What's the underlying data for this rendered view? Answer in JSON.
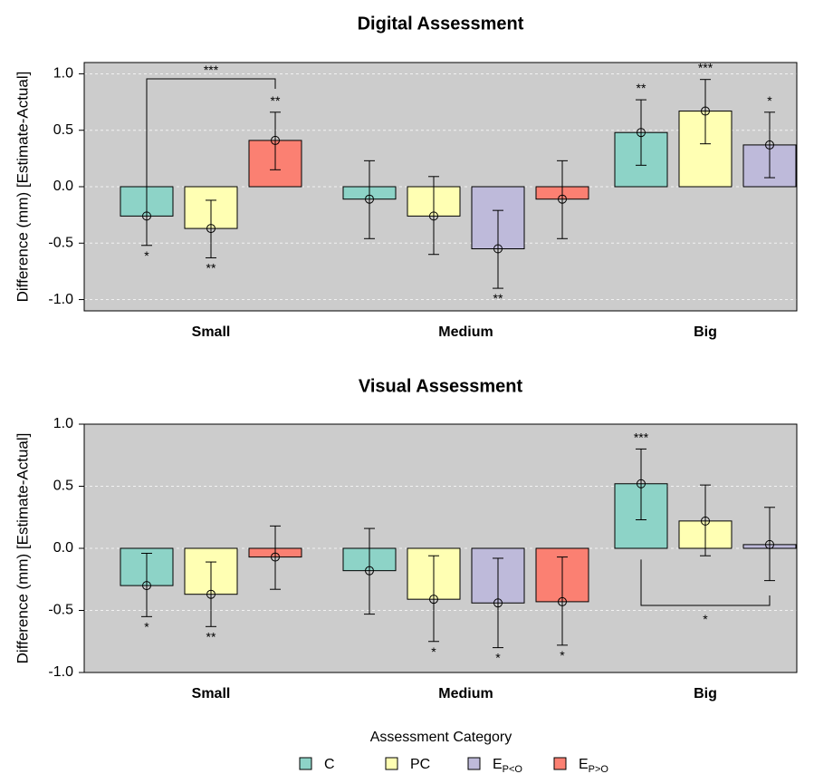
{
  "chart_data": [
    {
      "type": "bar",
      "title": "Digital Assessment",
      "ylabel": "Difference (mm) [Estimate-Actual]",
      "xlabel": "",
      "ylim": [
        -1.1,
        1.1
      ],
      "yticks": [
        "1.0",
        "0.5",
        "0.0",
        "-0.5",
        "-1.0"
      ],
      "grid": true,
      "categories": [
        "Small",
        "Medium",
        "Big"
      ],
      "groups": [
        {
          "category": "Small",
          "bars": [
            {
              "series": "C",
              "value": -0.26,
              "ci_low": -0.52,
              "ci_high": 0.0,
              "sig": "*"
            },
            {
              "series": "PC",
              "value": -0.37,
              "ci_low": -0.63,
              "ci_high": -0.12,
              "sig": "**"
            },
            {
              "series": "E>",
              "value": 0.41,
              "ci_low": 0.15,
              "ci_high": 0.66,
              "sig": "**"
            }
          ]
        },
        {
          "category": "Medium",
          "bars": [
            {
              "series": "C",
              "value": -0.11,
              "ci_low": -0.46,
              "ci_high": 0.23,
              "sig": ""
            },
            {
              "series": "PC",
              "value": -0.26,
              "ci_low": -0.6,
              "ci_high": 0.09,
              "sig": ""
            },
            {
              "series": "E<",
              "value": -0.55,
              "ci_low": -0.9,
              "ci_high": -0.21,
              "sig": "**"
            },
            {
              "series": "E>",
              "value": -0.11,
              "ci_low": -0.46,
              "ci_high": 0.23,
              "sig": ""
            }
          ]
        },
        {
          "category": "Big",
          "bars": [
            {
              "series": "C",
              "value": 0.48,
              "ci_low": 0.19,
              "ci_high": 0.77,
              "sig": "**"
            },
            {
              "series": "PC",
              "value": 0.67,
              "ci_low": 0.38,
              "ci_high": 0.95,
              "sig": "***"
            },
            {
              "series": "E<",
              "value": 0.37,
              "ci_low": 0.08,
              "ci_high": 0.66,
              "sig": "*"
            }
          ]
        }
      ],
      "brackets": [
        {
          "from": "Small/C",
          "to": "Small/E>",
          "label": "***",
          "position": "above"
        }
      ]
    },
    {
      "type": "bar",
      "title": "Visual Assessment",
      "ylabel": "Difference (mm) [Estimate-Actual]",
      "xlabel": "",
      "ylim": [
        -1.0,
        1.0
      ],
      "yticks": [
        "1.0",
        "0.5",
        "0.0",
        "-0.5",
        "-1.0"
      ],
      "grid": true,
      "categories": [
        "Small",
        "Medium",
        "Big"
      ],
      "groups": [
        {
          "category": "Small",
          "bars": [
            {
              "series": "C",
              "value": -0.3,
              "ci_low": -0.55,
              "ci_high": -0.04,
              "sig": "*"
            },
            {
              "series": "PC",
              "value": -0.37,
              "ci_low": -0.63,
              "ci_high": -0.11,
              "sig": "**"
            },
            {
              "series": "E>",
              "value": -0.07,
              "ci_low": -0.33,
              "ci_high": 0.18,
              "sig": ""
            }
          ]
        },
        {
          "category": "Medium",
          "bars": [
            {
              "series": "C",
              "value": -0.18,
              "ci_low": -0.53,
              "ci_high": 0.16,
              "sig": ""
            },
            {
              "series": "PC",
              "value": -0.41,
              "ci_low": -0.75,
              "ci_high": -0.06,
              "sig": "*"
            },
            {
              "series": "E<",
              "value": -0.44,
              "ci_low": -0.8,
              "ci_high": -0.08,
              "sig": "*"
            },
            {
              "series": "E>",
              "value": -0.43,
              "ci_low": -0.78,
              "ci_high": -0.07,
              "sig": "*"
            }
          ]
        },
        {
          "category": "Big",
          "bars": [
            {
              "series": "C",
              "value": 0.52,
              "ci_low": 0.23,
              "ci_high": 0.8,
              "sig": "***"
            },
            {
              "series": "PC",
              "value": 0.22,
              "ci_low": -0.06,
              "ci_high": 0.51,
              "sig": ""
            },
            {
              "series": "E<",
              "value": 0.03,
              "ci_low": -0.26,
              "ci_high": 0.33,
              "sig": ""
            }
          ]
        }
      ],
      "brackets": [
        {
          "from": "Big/C",
          "to": "Big/E<",
          "label": "*",
          "position": "below"
        }
      ]
    }
  ],
  "legend": {
    "title": "Assessment Category",
    "placement": "bottom-center",
    "items": [
      {
        "key": "C",
        "label": "C",
        "sub": "",
        "color": "#8dd3c7"
      },
      {
        "key": "PC",
        "label": "PC",
        "sub": "",
        "color": "#ffffb3"
      },
      {
        "key": "E<",
        "label": "E",
        "sub": "P<O",
        "color": "#bebada"
      },
      {
        "key": "E>",
        "label": "E",
        "sub": "P>O",
        "color": "#fb8072"
      }
    ]
  },
  "colors": {
    "panel_bg": "#cccccc",
    "C": "#8dd3c7",
    "PC": "#ffffb3",
    "E<": "#bebada",
    "E>": "#fb8072"
  }
}
